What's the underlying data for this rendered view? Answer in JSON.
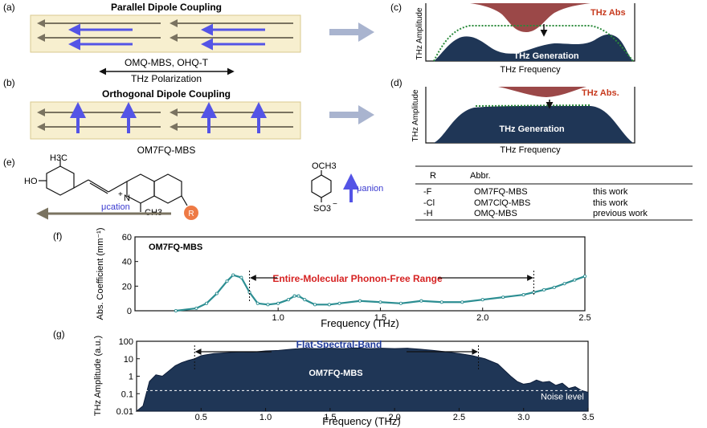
{
  "colors": {
    "panel_bg": "#f7efcf",
    "panel_border": "#d9c98f",
    "gray_arrow": "#7a7360",
    "blue_arrow": "#5454e6",
    "navy_fill": "#1f3656",
    "abs_fill": "#9b4848",
    "abs_text": "#c73a1e",
    "teal": "#2c8e92",
    "red_text": "#d62222",
    "green_dot": "#2a8a3a",
    "flow_arrow": "#a9b4cf",
    "orange": "#ee7a45"
  },
  "panel_a": {
    "label": "(a)",
    "title": "Parallel Dipole Coupling",
    "caption": "OMQ-MBS, OHQ-T",
    "polarization": "THz Polarization"
  },
  "panel_b": {
    "label": "(b)",
    "title": "Orthogonal Dipole Coupling",
    "caption": "OM7FQ-MBS"
  },
  "panel_c": {
    "label": "(c)",
    "ylabel": "THz Amplitude",
    "xlabel": "THz Frequency",
    "abs_text": "THz Abs",
    "gen_text": "THz Generation"
  },
  "panel_d": {
    "label": "(d)",
    "ylabel": "THz Amplitude",
    "xlabel": "THz Frequency",
    "abs_text": "THz Abs.",
    "gen_text": "THz Generation"
  },
  "panel_e": {
    "label": "(e)",
    "h3c": "H3C",
    "ho": "HO",
    "plus": "+",
    "n": "N",
    "ch3_n": "CH3",
    "r_atom": "R",
    "mu_cation": "μcation",
    "och3": "OCH3",
    "so3": "SO3",
    "so3_charge": "−",
    "mu_anion": "μanion",
    "table": {
      "headers": [
        "R",
        "Abbr."
      ],
      "rows": [
        [
          "-F",
          "OM7FQ-MBS",
          "this work"
        ],
        [
          "-Cl",
          "OM7ClQ-MBS",
          "this work"
        ],
        [
          "-H",
          "OMQ-MBS",
          "previous work"
        ]
      ]
    }
  },
  "chart_data": [
    {
      "panel": "(f)",
      "type": "line",
      "title": "OM7FQ-MBS",
      "xlabel": "Frequency (THz)",
      "ylabel": "Abs. Coefficient (mm⁻¹)",
      "xlim": [
        0.3,
        2.5
      ],
      "ylim": [
        0,
        60
      ],
      "xticks": [
        1.0,
        1.5,
        2.0,
        2.5
      ],
      "xtick_labels": [
        "1.0",
        "1.5",
        "2.0",
        "2.5"
      ],
      "yticks": [
        0,
        20,
        40,
        60
      ],
      "ytick_labels": [
        "0",
        "20",
        "40",
        "60"
      ],
      "annotation": "Entire-Molecular Phonon-Free Range",
      "range": [
        0.86,
        2.25
      ],
      "x": [
        0.5,
        0.6,
        0.65,
        0.7,
        0.75,
        0.78,
        0.82,
        0.86,
        0.9,
        0.95,
        1.0,
        1.05,
        1.08,
        1.1,
        1.13,
        1.18,
        1.25,
        1.3,
        1.4,
        1.5,
        1.6,
        1.7,
        1.8,
        1.9,
        2.0,
        2.1,
        2.2,
        2.25,
        2.3,
        2.35,
        2.4,
        2.45,
        2.5
      ],
      "y": [
        0,
        2,
        6,
        14,
        24,
        29,
        27,
        15,
        6,
        5,
        6,
        9,
        12,
        12,
        9,
        5,
        5,
        6,
        8,
        7,
        6,
        8,
        7,
        7,
        9,
        11,
        13,
        15,
        17,
        19,
        22,
        25,
        28
      ]
    },
    {
      "panel": "(g)",
      "type": "area",
      "title": "OM7FQ-MBS",
      "xlabel": "Frequency (THz)",
      "ylabel": "THz Amplitude (a.u.)",
      "xlim": [
        0.0,
        3.5
      ],
      "ylim": [
        0.01,
        100
      ],
      "yscale": "log",
      "xticks": [
        0.5,
        1.0,
        1.5,
        2.0,
        2.5,
        3.0,
        3.5
      ],
      "xtick_labels": [
        "0.5",
        "1.0",
        "1.5",
        "2.0",
        "2.5",
        "3.0",
        "3.5"
      ],
      "yticks": [
        0.01,
        0.1,
        1,
        10,
        100
      ],
      "ytick_labels": [
        "0.01",
        "0.1",
        "1",
        "10",
        "100"
      ],
      "annotation": "Flat-Spectral-Band",
      "range": [
        0.45,
        2.65
      ],
      "noise_level": 0.15,
      "noise_label": "Noise level",
      "x": [
        0.0,
        0.05,
        0.1,
        0.15,
        0.2,
        0.25,
        0.3,
        0.35,
        0.4,
        0.45,
        0.5,
        0.6,
        0.7,
        0.8,
        0.9,
        1.0,
        1.1,
        1.2,
        1.3,
        1.4,
        1.5,
        1.6,
        1.7,
        1.8,
        1.9,
        2.0,
        2.1,
        2.2,
        2.3,
        2.4,
        2.5,
        2.6,
        2.7,
        2.8,
        2.9,
        2.95,
        3.0,
        3.05,
        3.1,
        3.15,
        3.2,
        3.25,
        3.3,
        3.35,
        3.4,
        3.45,
        3.5
      ],
      "y": [
        0.01,
        0.02,
        0.5,
        1.2,
        1.0,
        2.0,
        4.0,
        6.0,
        8.0,
        10,
        15,
        20,
        22,
        25,
        24,
        28,
        30,
        35,
        40,
        38,
        40,
        38,
        42,
        38,
        40,
        38,
        40,
        35,
        30,
        25,
        20,
        15,
        10,
        5,
        1.0,
        0.5,
        0.35,
        0.4,
        0.6,
        0.45,
        0.5,
        0.3,
        0.4,
        0.2,
        0.25,
        0.15,
        0.12
      ]
    }
  ]
}
